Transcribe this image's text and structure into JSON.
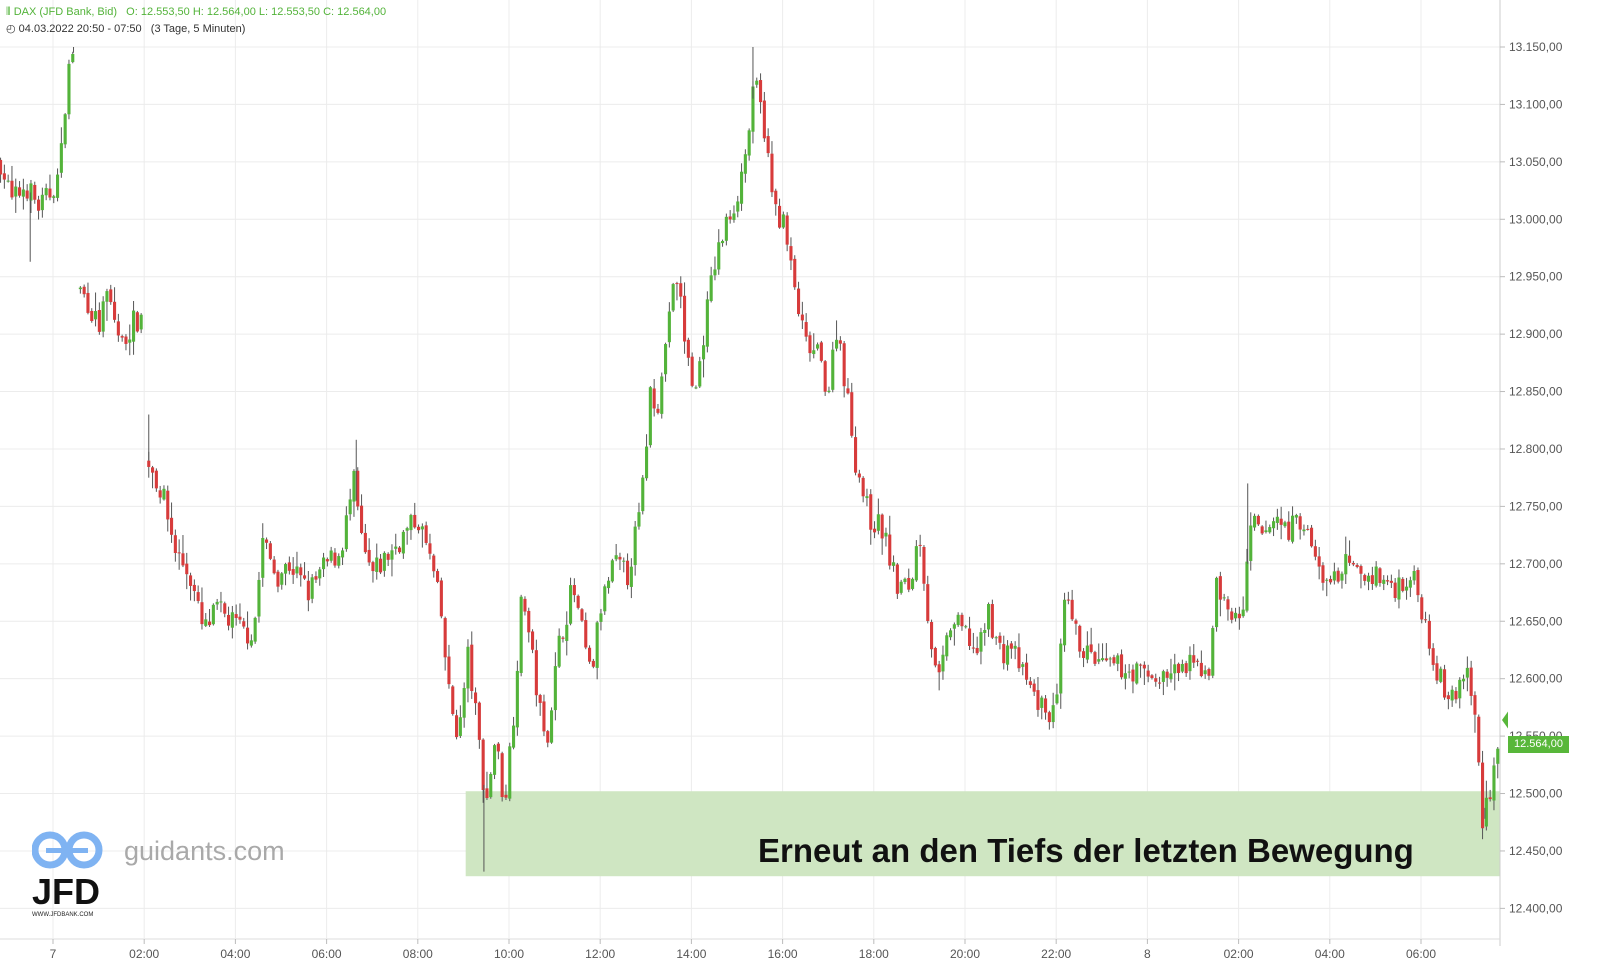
{
  "header": {
    "symbol": "DAX (JFD Bank, Bid)",
    "ohlc": "O: 12.553,50  H: 12.564,00  L: 12.553,50  C: 12.564,00",
    "range": "04.03.2022 20:50 - 07:50",
    "period": "(3 Tage, 5 Minuten)"
  },
  "branding": {
    "watermark": "guidants.com",
    "logo_text": "JFD",
    "logo_sub": "WWW.JFDBANK.COM"
  },
  "annotation": "Erneut an den Tiefs der letzten Bewegung",
  "last_price": "12.564,00",
  "colors": {
    "up": "#53b33a",
    "down": "#d73b3b",
    "zone": "#cfe6c2",
    "badge": "#58b73a"
  },
  "chart_data": {
    "type": "candlestick",
    "ylim": [
      12390,
      13180
    ],
    "y_ticks": [
      {
        "v": 13150,
        "label": "13.150,00"
      },
      {
        "v": 13100,
        "label": "13.100,00"
      },
      {
        "v": 13050,
        "label": "13.050,00"
      },
      {
        "v": 13000,
        "label": "13.000,00"
      },
      {
        "v": 12950,
        "label": "12.950,00"
      },
      {
        "v": 12900,
        "label": "12.900,00"
      },
      {
        "v": 12850,
        "label": "12.850,00"
      },
      {
        "v": 12800,
        "label": "12.800,00"
      },
      {
        "v": 12750,
        "label": "12.750,00"
      },
      {
        "v": 12700,
        "label": "12.700,00"
      },
      {
        "v": 12650,
        "label": "12.650,00"
      },
      {
        "v": 12600,
        "label": "12.600,00"
      },
      {
        "v": 12550,
        "label": "12.550,00"
      },
      {
        "v": 12500,
        "label": "12.500,00"
      },
      {
        "v": 12450,
        "label": "12.450,00"
      },
      {
        "v": 12400,
        "label": "12.400,00"
      }
    ],
    "x_ticks": [
      {
        "t": 0,
        "label": "7"
      },
      {
        "t": 2,
        "label": "02:00"
      },
      {
        "t": 4,
        "label": "04:00"
      },
      {
        "t": 6,
        "label": "06:00"
      },
      {
        "t": 8,
        "label": "08:00"
      },
      {
        "t": 10,
        "label": "10:00"
      },
      {
        "t": 12,
        "label": "12:00"
      },
      {
        "t": 14,
        "label": "14:00"
      },
      {
        "t": 16,
        "label": "16:00"
      },
      {
        "t": 18,
        "label": "18:00"
      },
      {
        "t": 20,
        "label": "20:00"
      },
      {
        "t": 22,
        "label": "22:00"
      },
      {
        "t": 24,
        "label": "8"
      },
      {
        "t": 26,
        "label": "02:00"
      },
      {
        "t": 28,
        "label": "04:00"
      },
      {
        "t": 30,
        "label": "06:00"
      }
    ],
    "zone": {
      "from_t": 9.05,
      "to_t": 32.5,
      "low": 12428,
      "high": 12502
    },
    "path": [
      {
        "t": -1.15,
        "p": 13050
      },
      {
        "t": -0.9,
        "p": 13015
      },
      {
        "t": -0.6,
        "p": 13030
      },
      {
        "t": -0.3,
        "p": 13010
      },
      {
        "t": -0.1,
        "p": 13020
      },
      {
        "t": 0.15,
        "p": 13040
      },
      {
        "t": 0.3,
        "p": 13120
      },
      {
        "t": 0.45,
        "p": 13150
      },
      {
        "t": 0.55,
        "p": 12940
      },
      {
        "t": 0.75,
        "p": 12930
      },
      {
        "t": 1.0,
        "p": 12905
      },
      {
        "t": 1.2,
        "p": 12935
      },
      {
        "t": 1.5,
        "p": 12890
      },
      {
        "t": 1.75,
        "p": 12910
      },
      {
        "t": 1.95,
        "p": 12915
      },
      {
        "t": 2.1,
        "p": 12790
      },
      {
        "t": 2.4,
        "p": 12760
      },
      {
        "t": 2.7,
        "p": 12710
      },
      {
        "t": 3.0,
        "p": 12690
      },
      {
        "t": 3.3,
        "p": 12640
      },
      {
        "t": 3.6,
        "p": 12660
      },
      {
        "t": 3.9,
        "p": 12650
      },
      {
        "t": 4.2,
        "p": 12640
      },
      {
        "t": 4.4,
        "p": 12640
      },
      {
        "t": 4.6,
        "p": 12720
      },
      {
        "t": 4.9,
        "p": 12690
      },
      {
        "t": 5.2,
        "p": 12700
      },
      {
        "t": 5.6,
        "p": 12675
      },
      {
        "t": 6.0,
        "p": 12700
      },
      {
        "t": 6.3,
        "p": 12710
      },
      {
        "t": 6.6,
        "p": 12770
      },
      {
        "t": 6.8,
        "p": 12710
      },
      {
        "t": 7.0,
        "p": 12690
      },
      {
        "t": 7.4,
        "p": 12710
      },
      {
        "t": 7.8,
        "p": 12730
      },
      {
        "t": 8.0,
        "p": 12740
      },
      {
        "t": 8.3,
        "p": 12700
      },
      {
        "t": 8.5,
        "p": 12660
      },
      {
        "t": 8.7,
        "p": 12580
      },
      {
        "t": 8.9,
        "p": 12550
      },
      {
        "t": 9.1,
        "p": 12620
      },
      {
        "t": 9.3,
        "p": 12560
      },
      {
        "t": 9.5,
        "p": 12490
      },
      {
        "t": 9.7,
        "p": 12550
      },
      {
        "t": 9.9,
        "p": 12490
      },
      {
        "t": 10.1,
        "p": 12570
      },
      {
        "t": 10.3,
        "p": 12680
      },
      {
        "t": 10.5,
        "p": 12620
      },
      {
        "t": 10.8,
        "p": 12540
      },
      {
        "t": 11.1,
        "p": 12630
      },
      {
        "t": 11.4,
        "p": 12680
      },
      {
        "t": 11.6,
        "p": 12640
      },
      {
        "t": 11.8,
        "p": 12600
      },
      {
        "t": 12.0,
        "p": 12660
      },
      {
        "t": 12.3,
        "p": 12700
      },
      {
        "t": 12.6,
        "p": 12690
      },
      {
        "t": 12.9,
        "p": 12750
      },
      {
        "t": 13.1,
        "p": 12850
      },
      {
        "t": 13.3,
        "p": 12840
      },
      {
        "t": 13.5,
        "p": 12920
      },
      {
        "t": 13.7,
        "p": 12950
      },
      {
        "t": 13.9,
        "p": 12880
      },
      {
        "t": 14.1,
        "p": 12850
      },
      {
        "t": 14.3,
        "p": 12910
      },
      {
        "t": 14.5,
        "p": 12960
      },
      {
        "t": 14.8,
        "p": 13000
      },
      {
        "t": 15.0,
        "p": 13020
      },
      {
        "t": 15.2,
        "p": 13060
      },
      {
        "t": 15.4,
        "p": 13120
      },
      {
        "t": 15.6,
        "p": 13080
      },
      {
        "t": 15.8,
        "p": 13010
      },
      {
        "t": 16.0,
        "p": 13000
      },
      {
        "t": 16.3,
        "p": 12930
      },
      {
        "t": 16.5,
        "p": 12890
      },
      {
        "t": 16.8,
        "p": 12880
      },
      {
        "t": 17.0,
        "p": 12850
      },
      {
        "t": 17.2,
        "p": 12910
      },
      {
        "t": 17.4,
        "p": 12850
      },
      {
        "t": 17.6,
        "p": 12790
      },
      {
        "t": 17.9,
        "p": 12740
      },
      {
        "t": 18.2,
        "p": 12730
      },
      {
        "t": 18.5,
        "p": 12680
      },
      {
        "t": 18.8,
        "p": 12680
      },
      {
        "t": 19.0,
        "p": 12730
      },
      {
        "t": 19.2,
        "p": 12650
      },
      {
        "t": 19.4,
        "p": 12590
      },
      {
        "t": 19.7,
        "p": 12650
      },
      {
        "t": 20.0,
        "p": 12640
      },
      {
        "t": 20.3,
        "p": 12620
      },
      {
        "t": 20.5,
        "p": 12660
      },
      {
        "t": 20.8,
        "p": 12620
      },
      {
        "t": 21.0,
        "p": 12630
      },
      {
        "t": 21.3,
        "p": 12600
      },
      {
        "t": 21.6,
        "p": 12580
      },
      {
        "t": 21.8,
        "p": 12570
      },
      {
        "t": 22.0,
        "p": 12570
      },
      {
        "t": 22.2,
        "p": 12670
      },
      {
        "t": 22.4,
        "p": 12640
      },
      {
        "t": 22.7,
        "p": 12620
      },
      {
        "t": 23.0,
        "p": 12610
      },
      {
        "t": 23.4,
        "p": 12610
      },
      {
        "t": 23.8,
        "p": 12605
      },
      {
        "t": 24.2,
        "p": 12600
      },
      {
        "t": 24.6,
        "p": 12605
      },
      {
        "t": 24.9,
        "p": 12610
      },
      {
        "t": 25.2,
        "p": 12610
      },
      {
        "t": 25.4,
        "p": 12610
      },
      {
        "t": 25.5,
        "p": 12690
      },
      {
        "t": 25.8,
        "p": 12650
      },
      {
        "t": 26.1,
        "p": 12660
      },
      {
        "t": 26.3,
        "p": 12740
      },
      {
        "t": 26.5,
        "p": 12720
      },
      {
        "t": 26.8,
        "p": 12740
      },
      {
        "t": 27.1,
        "p": 12730
      },
      {
        "t": 27.4,
        "p": 12740
      },
      {
        "t": 27.7,
        "p": 12700
      },
      {
        "t": 28.0,
        "p": 12680
      },
      {
        "t": 28.3,
        "p": 12700
      },
      {
        "t": 28.6,
        "p": 12690
      },
      {
        "t": 29.0,
        "p": 12690
      },
      {
        "t": 29.4,
        "p": 12680
      },
      {
        "t": 29.8,
        "p": 12690
      },
      {
        "t": 30.1,
        "p": 12650
      },
      {
        "t": 30.4,
        "p": 12600
      },
      {
        "t": 30.7,
        "p": 12580
      },
      {
        "t": 31.0,
        "p": 12610
      },
      {
        "t": 31.2,
        "p": 12560
      },
      {
        "t": 31.35,
        "p": 12480
      },
      {
        "t": 31.55,
        "p": 12510
      },
      {
        "t": 31.75,
        "p": 12564
      }
    ],
    "gaps": [
      [
        0.48,
        0.52
      ],
      [
        1.98,
        2.08
      ]
    ],
    "spikes": [
      {
        "t": 0.45,
        "p": 13145
      },
      {
        "t": 15.35,
        "p": 13150
      },
      {
        "t": 9.45,
        "p": 12432
      },
      {
        "t": 2.1,
        "p": 12830
      },
      {
        "t": 31.4,
        "p": 12478
      },
      {
        "t": -0.5,
        "p": 12963
      },
      {
        "t": 26.2,
        "p": 12770
      },
      {
        "t": 6.65,
        "p": 12808
      }
    ]
  }
}
